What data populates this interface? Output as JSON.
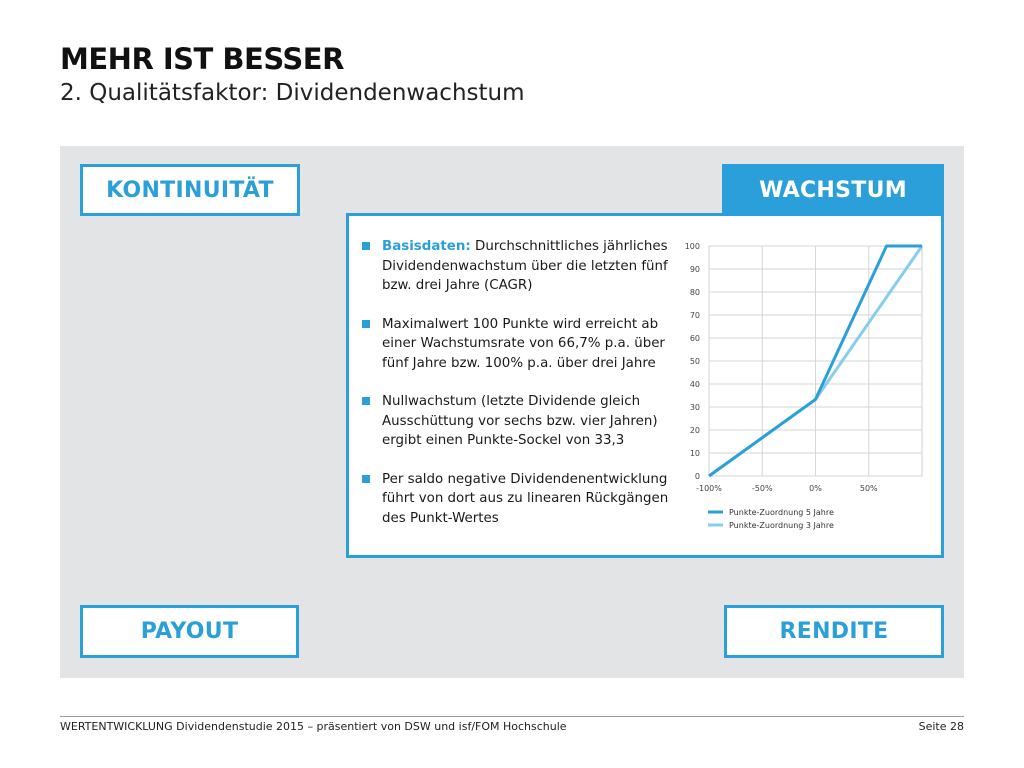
{
  "header": {
    "title": "MEHR IST BESSER",
    "subtitle": "2. Qualitätsfaktor: Dividendenwachstum"
  },
  "quadrants": {
    "top_left": "KONTINUITÄT",
    "top_right": "WACHSTUM",
    "bottom_left": "PAYOUT",
    "bottom_right": "RENDITE"
  },
  "bullets": [
    {
      "keyword": "Basisdaten:",
      "text": " Durchschnittliches jährliches Dividendenwachstum über die letzten fünf bzw. drei Jahre (CAGR)"
    },
    {
      "keyword": "",
      "text": "Maximalwert 100 Punkte wird erreicht ab einer Wachstumsrate von 66,7% p.a. über fünf Jahre bzw. 100% p.a. über drei Jahre"
    },
    {
      "keyword": "",
      "text": "Nullwachstum (letzte Dividende gleich Ausschüttung vor sechs bzw. vier Jahren) ergibt einen Punkte-Sockel von 33,3"
    },
    {
      "keyword": "",
      "text": "Per saldo negative Dividendenentwicklung führt von dort aus zu linearen Rückgängen des Punkt-Wertes"
    }
  ],
  "chart_data": {
    "type": "line",
    "x_ticks": [
      "-100%",
      "-50%",
      "0%",
      "50%"
    ],
    "y_ticks": [
      "0",
      "10",
      "20",
      "30",
      "40",
      "50",
      "60",
      "70",
      "80",
      "90",
      "100"
    ],
    "xlim": [
      -100,
      100
    ],
    "ylim": [
      0,
      100
    ],
    "grid": true,
    "legend_position": "bottom",
    "series": [
      {
        "name": "Punkte-Zuordnung 5 Jahre",
        "color": "#2b9fd9",
        "x": [
          -100,
          0,
          66.7,
          100
        ],
        "y": [
          0,
          33.3,
          100,
          100
        ]
      },
      {
        "name": "Punkte-Zuordnung 3 Jahre",
        "color": "#86cdee",
        "x": [
          -100,
          0,
          100
        ],
        "y": [
          0,
          33.3,
          100
        ]
      }
    ]
  },
  "footer": {
    "left": "WERTENTWICKLUNG Dividendenstudie 2015 – präsentiert von DSW und isf/FOM Hochschule",
    "right": "Seite 28"
  }
}
